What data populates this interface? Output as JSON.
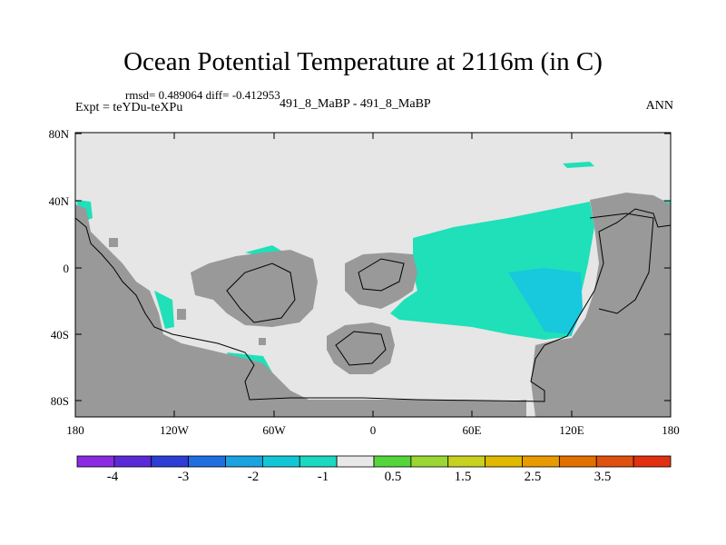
{
  "title": "Ocean Potential Temperature at 2116m (in C)",
  "stats_line": "rmsd= 0.489064 diff= -0.412953",
  "expt_line": "Expt = teYDu-teXPu",
  "case_line": "491_8_MaBP - 491_8_MaBP",
  "season": "ANN",
  "lat_labels": [
    "80N",
    "40N",
    "0",
    "40S",
    "80S"
  ],
  "lon_labels": [
    "180",
    "120W",
    "60W",
    "0",
    "60E",
    "120E",
    "180"
  ],
  "colorbar": {
    "colors": [
      "#8a2be2",
      "#5a2ad8",
      "#2c3ed6",
      "#1f6fe0",
      "#1aa3e0",
      "#12c6d8",
      "#1ad9c0",
      "#e8e8e8",
      "#55d43b",
      "#9ad634",
      "#c8d020",
      "#e0b800",
      "#e89a00",
      "#e07000",
      "#e05010",
      "#e03010"
    ],
    "labels": [
      "-4",
      "-3",
      "-2",
      "-1",
      "0.5",
      "1.5",
      "2.5",
      "3.5"
    ]
  },
  "colors": {
    "ocean_background": "#e6e6e6",
    "land": "#999999",
    "anomaly_cool": "#1fe0b8",
    "anomaly_cooler": "#18c8dc"
  }
}
